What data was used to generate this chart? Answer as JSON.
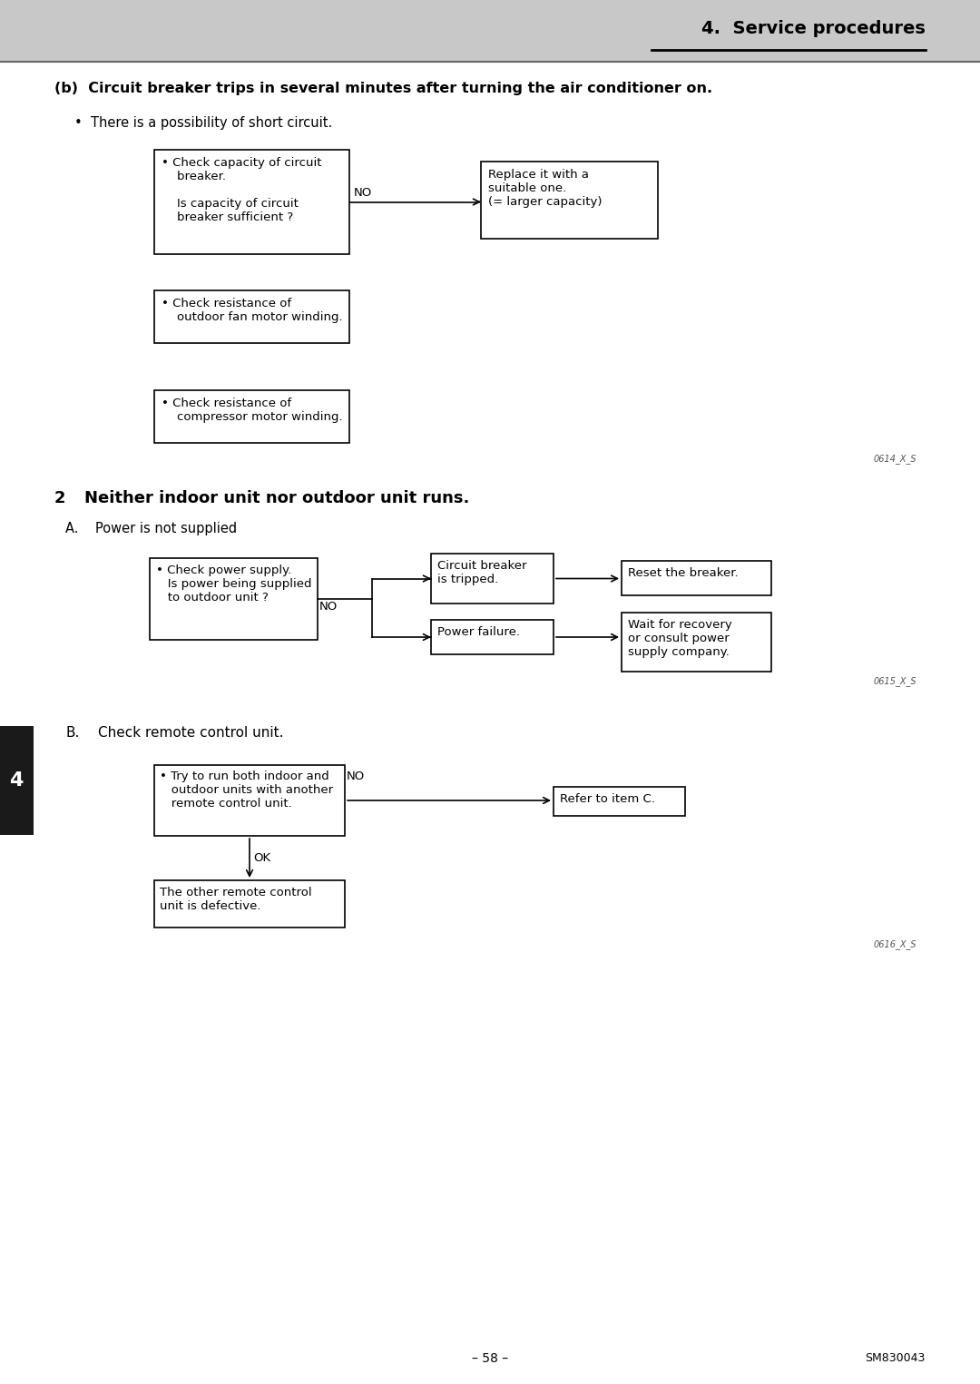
{
  "page_bg": "#ffffff",
  "header_bg": "#c8c8c8",
  "header_text": "4.  Service procedures",
  "sidebar_color": "#1a1a1a",
  "section_b_title": "(b)  Circuit breaker trips in several minutes after turning the air conditioner on.",
  "section_b_bullet": "•  There is a possibility of short circuit.",
  "box1_text": "• Check capacity of circuit\n    breaker.\n\n    Is capacity of circuit\n    breaker sufficient ?",
  "box2_text": "Replace it with a\nsuitable one.\n(= larger capacity)",
  "box3_text": "• Check resistance of\n    outdoor fan motor winding.",
  "box4_text": "• Check resistance of\n    compressor motor winding.",
  "diagram1_code": "0614_X_S",
  "section2_number": "2",
  "section2_title": "Neither indoor unit nor outdoor unit runs.",
  "section2_sub": "A.    Power is not supplied",
  "box5_text": "• Check power supply.\n   Is power being supplied\n   to outdoor unit ?",
  "box6_text": "Circuit breaker\nis tripped.",
  "box7_text": "Reset the breaker.",
  "box8_text": "Power failure.",
  "box9_text": "Wait for recovery\nor consult power\nsupply company.",
  "diagram2_code": "0615_X_S",
  "section_b2_label": "B.",
  "section_b2_text": "Check remote control unit.",
  "box10_text": "• Try to run both indoor and\n   outdoor units with another\n   remote control unit.",
  "box11_text": "Refer to item C.",
  "box12_text": "The other remote control\nunit is defective.",
  "diagram3_code": "0616_X_S",
  "footer_text": "SM830043",
  "page_number": "– 58 –"
}
